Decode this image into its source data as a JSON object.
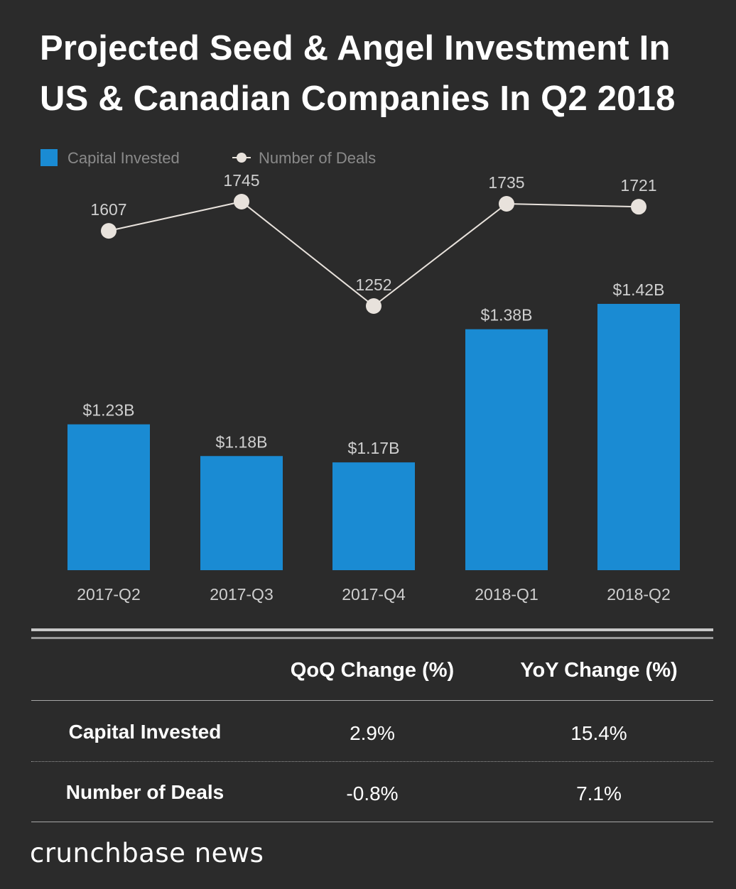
{
  "title": {
    "line1": "Projected Seed & Angel Investment In",
    "line2": "US & Canadian Companies In Q2 2018"
  },
  "colors": {
    "background": "#2b2b2b",
    "bar": "#1a8bd3",
    "line": "#e8e2dc",
    "legend_text": "#8a8a8a",
    "label_text": "#cfcfcf"
  },
  "chart_data": {
    "type": "bar",
    "title": "Projected Seed & Angel Investment In US & Canadian Companies In Q2 2018",
    "categories": [
      "2017-Q2",
      "2017-Q3",
      "2017-Q4",
      "2018-Q1",
      "2018-Q2"
    ],
    "series": [
      {
        "name": "Capital Invested",
        "kind": "bar",
        "values": [
          1.23,
          1.18,
          1.17,
          1.38,
          1.42
        ],
        "labels": [
          "$1.23B",
          "$1.18B",
          "$1.17B",
          "$1.38B",
          "$1.42B"
        ]
      },
      {
        "name": "Number of Deals",
        "kind": "line",
        "values": [
          1607,
          1745,
          1252,
          1735,
          1721
        ],
        "labels": [
          "1607",
          "1745",
          "1252",
          "1735",
          "1721"
        ]
      }
    ],
    "legend": [
      "Capital Invested",
      "Number of Deals"
    ],
    "legend_position": "top-left",
    "grid": false
  },
  "table": {
    "headers": [
      "QoQ Change (%)",
      "YoY Change (%)"
    ],
    "rows": [
      {
        "label": "Capital Invested",
        "qoq": "2.9%",
        "yoy": "15.4%"
      },
      {
        "label": "Number of Deals",
        "qoq": "-0.8%",
        "yoy": "7.1%"
      }
    ]
  },
  "brand": "crunchbase news"
}
